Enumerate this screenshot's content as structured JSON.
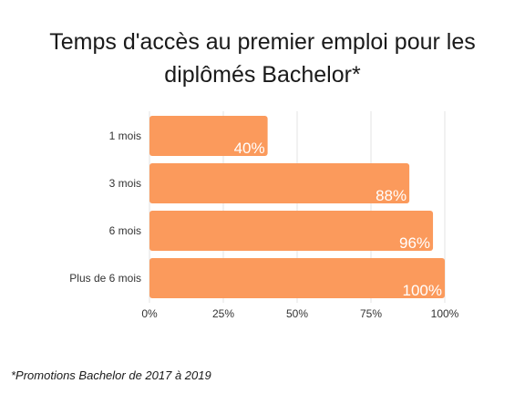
{
  "chart_data": {
    "type": "bar",
    "orientation": "horizontal",
    "title_lines": [
      "Temps d'accès au premier emploi pour les",
      "diplômés Bachelor*"
    ],
    "categories": [
      "1 mois",
      "3 mois",
      "6 mois",
      "Plus de 6 mois"
    ],
    "values": [
      40,
      88,
      96,
      100
    ],
    "data_labels": [
      "40%",
      "88%",
      "96%",
      "100%"
    ],
    "xlim": [
      0,
      100
    ],
    "x_ticks": [
      0,
      25,
      50,
      75,
      100
    ],
    "x_tick_labels": [
      "0%",
      "25%",
      "50%",
      "75%",
      "100%"
    ],
    "grid": "vertical",
    "bar_color": "#FB9A5C",
    "grid_color": "#e3e3e3",
    "footnote": "*Promotions Bachelor de 2017 à 2019"
  }
}
